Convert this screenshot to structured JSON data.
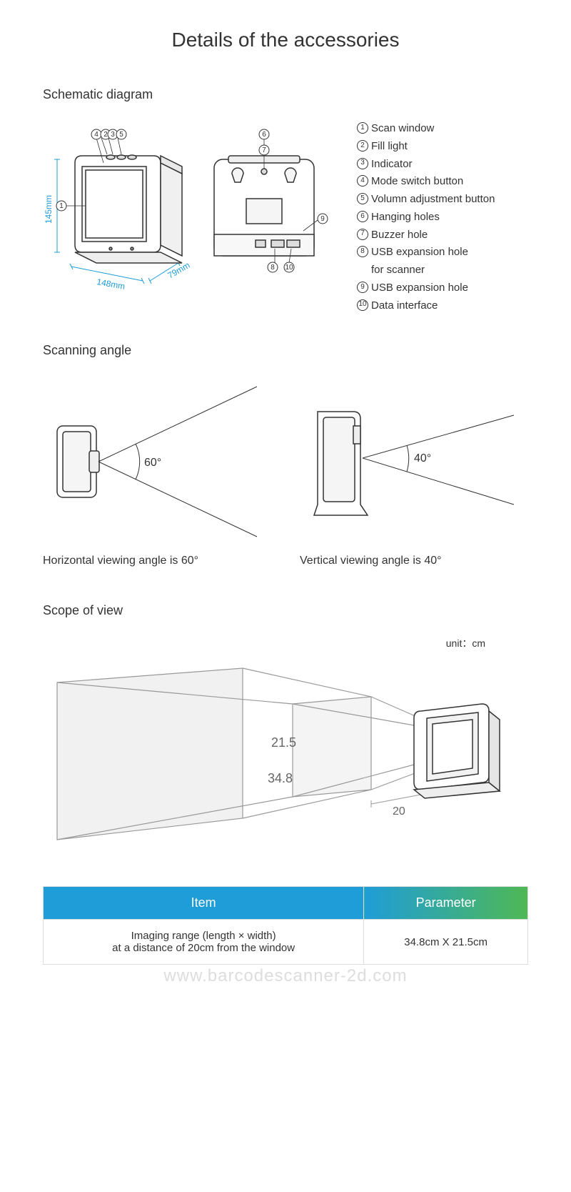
{
  "title": "Details of the accessories",
  "sections": {
    "schematic": "Schematic diagram",
    "angle": "Scanning angle",
    "scope": "Scope of view"
  },
  "dimensions": {
    "height": "145mm",
    "width": "148mm",
    "depth": "79mm",
    "dim_color": "#1f9dd8"
  },
  "callouts": [
    "1",
    "2",
    "3",
    "4",
    "5",
    "6",
    "7",
    "8",
    "9",
    "10"
  ],
  "legend": [
    {
      "n": "1",
      "t": "Scan window"
    },
    {
      "n": "2",
      "t": "Fill light"
    },
    {
      "n": "3",
      "t": "Indicator"
    },
    {
      "n": "4",
      "t": "Mode switch button"
    },
    {
      "n": "5",
      "t": "Volumn adjustment button"
    },
    {
      "n": "6",
      "t": "Hanging holes"
    },
    {
      "n": "7",
      "t": "Buzzer hole"
    },
    {
      "n": "8",
      "t": "USB expansion hole",
      "sub": "for scanner"
    },
    {
      "n": "9",
      "t": "USB expansion hole"
    },
    {
      "n": "10",
      "t": "Data interface"
    }
  ],
  "angles": {
    "horizontal": {
      "deg": "60°",
      "caption": "Horizontal viewing angle is 60°"
    },
    "vertical": {
      "deg": "40°",
      "caption": "Vertical viewing angle is 40°"
    }
  },
  "scope": {
    "unit_label": "unit：cm",
    "h": "21.5",
    "w": "34.8",
    "d": "20"
  },
  "table": {
    "headers": {
      "item": "Item",
      "param": "Parameter"
    },
    "row": {
      "item": "Imaging range (length × width)\nat a distance of 20cm from the window",
      "param": "34.8cm X 21.5cm"
    },
    "colors": {
      "blue": "#1f9dd8",
      "green": "#4fb855",
      "border": "#dddddd",
      "text": "#333333"
    }
  },
  "watermark": "www.barcodescanner-2d.com",
  "style": {
    "line_color": "#333333",
    "fill_light": "#f5f5f5",
    "fill_white": "#ffffff",
    "bg": "#ffffff"
  }
}
